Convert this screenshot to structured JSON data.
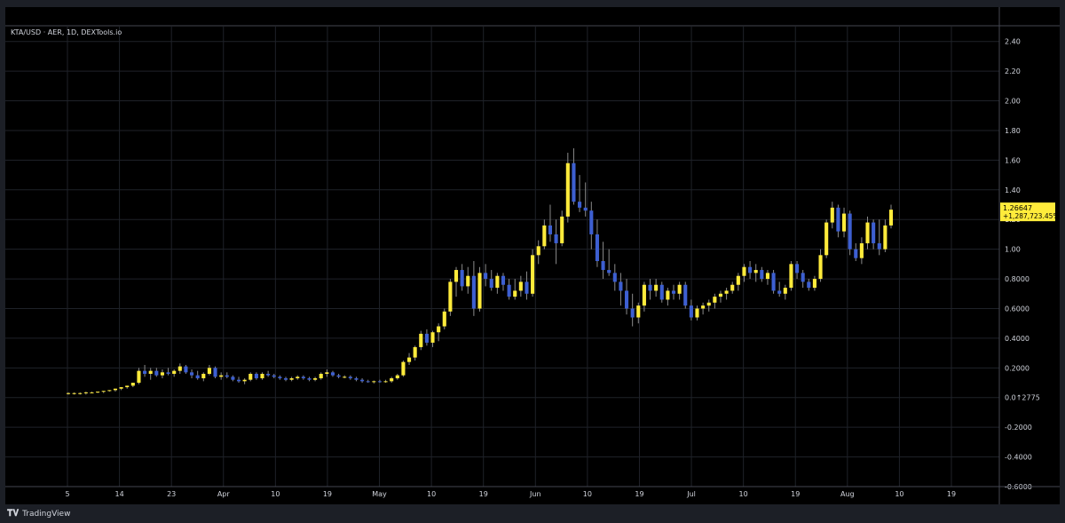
{
  "window": {
    "title": "KTA/USD · AER, 1D, DEXTools.io"
  },
  "brand": {
    "logo_icon": "tradingview-logo-icon",
    "name": "TradingView"
  },
  "colors": {
    "bg": "#000000",
    "up": "#ffeb3b",
    "down": "#3d5fd1",
    "grid": "#1f2229",
    "text": "#d1d4dc"
  },
  "chart_data": {
    "type": "candlestick",
    "title": "KTA/USD · AER, 1D, DEXTools.io",
    "y_ticks": [
      "2.40",
      "2.20",
      "2.00",
      "1.80",
      "1.60",
      "1.40",
      "1.20",
      "1.00",
      "0.8000",
      "0.6000",
      "0.4000",
      "0.2000",
      "0.0↑2775",
      "-0.2000",
      "-0.4000",
      "-0.6000"
    ],
    "x_ticks": [
      "5",
      "14",
      "23",
      "Apr",
      "10",
      "19",
      "May",
      "10",
      "19",
      "Jun",
      "10",
      "19",
      "Jul",
      "10",
      "19",
      "Aug",
      "10",
      "19"
    ],
    "ylim": [
      -0.6,
      2.5
    ],
    "last_price": "1.26647",
    "change_label": "+1,287,723.45%",
    "candles": [
      [
        0.03,
        0.035,
        0.02,
        0.03
      ],
      [
        0.03,
        0.035,
        0.02,
        0.03
      ],
      [
        0.03,
        0.035,
        0.02,
        0.03
      ],
      [
        0.03,
        0.04,
        0.02,
        0.035
      ],
      [
        0.035,
        0.04,
        0.03,
        0.035
      ],
      [
        0.035,
        0.04,
        0.03,
        0.04
      ],
      [
        0.04,
        0.045,
        0.03,
        0.045
      ],
      [
        0.045,
        0.05,
        0.04,
        0.05
      ],
      [
        0.05,
        0.06,
        0.04,
        0.06
      ],
      [
        0.06,
        0.07,
        0.05,
        0.07
      ],
      [
        0.07,
        0.08,
        0.06,
        0.08
      ],
      [
        0.08,
        0.1,
        0.07,
        0.1
      ],
      [
        0.1,
        0.2,
        0.09,
        0.18
      ],
      [
        0.18,
        0.22,
        0.14,
        0.16
      ],
      [
        0.16,
        0.2,
        0.12,
        0.18
      ],
      [
        0.18,
        0.2,
        0.14,
        0.15
      ],
      [
        0.15,
        0.19,
        0.13,
        0.17
      ],
      [
        0.17,
        0.2,
        0.15,
        0.16
      ],
      [
        0.16,
        0.19,
        0.14,
        0.18
      ],
      [
        0.18,
        0.23,
        0.16,
        0.21
      ],
      [
        0.21,
        0.22,
        0.16,
        0.17
      ],
      [
        0.17,
        0.19,
        0.13,
        0.15
      ],
      [
        0.15,
        0.18,
        0.12,
        0.13
      ],
      [
        0.13,
        0.17,
        0.11,
        0.16
      ],
      [
        0.16,
        0.22,
        0.15,
        0.2
      ],
      [
        0.2,
        0.21,
        0.13,
        0.14
      ],
      [
        0.14,
        0.17,
        0.12,
        0.15
      ],
      [
        0.15,
        0.17,
        0.13,
        0.14
      ],
      [
        0.14,
        0.15,
        0.11,
        0.12
      ],
      [
        0.12,
        0.14,
        0.1,
        0.11
      ],
      [
        0.11,
        0.13,
        0.09,
        0.12
      ],
      [
        0.12,
        0.17,
        0.11,
        0.16
      ],
      [
        0.16,
        0.17,
        0.12,
        0.13
      ],
      [
        0.13,
        0.17,
        0.12,
        0.16
      ],
      [
        0.16,
        0.18,
        0.14,
        0.15
      ],
      [
        0.15,
        0.16,
        0.13,
        0.14
      ],
      [
        0.14,
        0.15,
        0.12,
        0.13
      ],
      [
        0.13,
        0.14,
        0.11,
        0.12
      ],
      [
        0.12,
        0.14,
        0.11,
        0.13
      ],
      [
        0.13,
        0.15,
        0.12,
        0.14
      ],
      [
        0.14,
        0.15,
        0.12,
        0.13
      ],
      [
        0.13,
        0.14,
        0.11,
        0.12
      ],
      [
        0.12,
        0.14,
        0.11,
        0.13
      ],
      [
        0.13,
        0.17,
        0.12,
        0.16
      ],
      [
        0.16,
        0.19,
        0.14,
        0.17
      ],
      [
        0.17,
        0.18,
        0.14,
        0.15
      ],
      [
        0.15,
        0.16,
        0.13,
        0.14
      ],
      [
        0.14,
        0.15,
        0.13,
        0.14
      ],
      [
        0.14,
        0.15,
        0.12,
        0.13
      ],
      [
        0.13,
        0.14,
        0.11,
        0.12
      ],
      [
        0.12,
        0.13,
        0.1,
        0.11
      ],
      [
        0.11,
        0.12,
        0.1,
        0.105
      ],
      [
        0.105,
        0.115,
        0.095,
        0.11
      ],
      [
        0.11,
        0.12,
        0.1,
        0.105
      ],
      [
        0.105,
        0.12,
        0.1,
        0.11
      ],
      [
        0.11,
        0.14,
        0.1,
        0.13
      ],
      [
        0.13,
        0.16,
        0.12,
        0.15
      ],
      [
        0.15,
        0.25,
        0.14,
        0.24
      ],
      [
        0.24,
        0.3,
        0.22,
        0.27
      ],
      [
        0.27,
        0.35,
        0.25,
        0.34
      ],
      [
        0.34,
        0.45,
        0.32,
        0.43
      ],
      [
        0.43,
        0.46,
        0.35,
        0.37
      ],
      [
        0.37,
        0.45,
        0.34,
        0.44
      ],
      [
        0.44,
        0.5,
        0.38,
        0.48
      ],
      [
        0.48,
        0.6,
        0.46,
        0.58
      ],
      [
        0.58,
        0.8,
        0.55,
        0.78
      ],
      [
        0.78,
        0.88,
        0.68,
        0.86
      ],
      [
        0.86,
        0.9,
        0.72,
        0.75
      ],
      [
        0.75,
        0.88,
        0.7,
        0.82
      ],
      [
        0.82,
        0.92,
        0.55,
        0.6
      ],
      [
        0.6,
        0.88,
        0.58,
        0.84
      ],
      [
        0.84,
        0.9,
        0.75,
        0.8
      ],
      [
        0.8,
        0.86,
        0.72,
        0.74
      ],
      [
        0.74,
        0.84,
        0.7,
        0.82
      ],
      [
        0.82,
        0.84,
        0.72,
        0.76
      ],
      [
        0.76,
        0.8,
        0.66,
        0.68
      ],
      [
        0.68,
        0.8,
        0.66,
        0.72
      ],
      [
        0.72,
        0.82,
        0.68,
        0.78
      ],
      [
        0.78,
        0.85,
        0.66,
        0.7
      ],
      [
        0.7,
        1.0,
        0.68,
        0.96
      ],
      [
        0.96,
        1.06,
        0.9,
        1.02
      ],
      [
        1.02,
        1.2,
        1.0,
        1.16
      ],
      [
        1.16,
        1.3,
        1.05,
        1.1
      ],
      [
        1.1,
        1.2,
        0.9,
        1.04
      ],
      [
        1.04,
        1.26,
        1.02,
        1.22
      ],
      [
        1.22,
        1.65,
        1.18,
        1.58
      ],
      [
        1.58,
        1.68,
        1.3,
        1.32
      ],
      [
        1.32,
        1.5,
        1.25,
        1.28
      ],
      [
        1.28,
        1.45,
        1.22,
        1.26
      ],
      [
        1.26,
        1.32,
        1.0,
        1.1
      ],
      [
        1.1,
        1.2,
        0.88,
        0.92
      ],
      [
        0.92,
        1.05,
        0.8,
        0.86
      ],
      [
        0.86,
        1.0,
        0.82,
        0.84
      ],
      [
        0.84,
        0.9,
        0.72,
        0.78
      ],
      [
        0.78,
        0.84,
        0.62,
        0.72
      ],
      [
        0.72,
        0.8,
        0.56,
        0.6
      ],
      [
        0.6,
        0.7,
        0.48,
        0.54
      ],
      [
        0.54,
        0.64,
        0.5,
        0.62
      ],
      [
        0.62,
        0.78,
        0.58,
        0.76
      ],
      [
        0.76,
        0.8,
        0.66,
        0.72
      ],
      [
        0.72,
        0.8,
        0.68,
        0.76
      ],
      [
        0.76,
        0.78,
        0.64,
        0.66
      ],
      [
        0.66,
        0.74,
        0.62,
        0.72
      ],
      [
        0.72,
        0.76,
        0.66,
        0.7
      ],
      [
        0.7,
        0.78,
        0.66,
        0.76
      ],
      [
        0.76,
        0.78,
        0.6,
        0.62
      ],
      [
        0.62,
        0.66,
        0.52,
        0.54
      ],
      [
        0.54,
        0.62,
        0.52,
        0.6
      ],
      [
        0.6,
        0.64,
        0.56,
        0.62
      ],
      [
        0.62,
        0.66,
        0.58,
        0.64
      ],
      [
        0.64,
        0.7,
        0.6,
        0.68
      ],
      [
        0.68,
        0.72,
        0.64,
        0.7
      ],
      [
        0.7,
        0.74,
        0.66,
        0.72
      ],
      [
        0.72,
        0.78,
        0.7,
        0.76
      ],
      [
        0.76,
        0.84,
        0.72,
        0.82
      ],
      [
        0.82,
        0.9,
        0.78,
        0.88
      ],
      [
        0.88,
        0.92,
        0.8,
        0.84
      ],
      [
        0.84,
        0.9,
        0.78,
        0.86
      ],
      [
        0.86,
        0.88,
        0.78,
        0.8
      ],
      [
        0.8,
        0.86,
        0.76,
        0.84
      ],
      [
        0.84,
        0.86,
        0.7,
        0.72
      ],
      [
        0.72,
        0.78,
        0.68,
        0.7
      ],
      [
        0.7,
        0.76,
        0.66,
        0.74
      ],
      [
        0.74,
        0.92,
        0.72,
        0.9
      ],
      [
        0.9,
        0.92,
        0.8,
        0.84
      ],
      [
        0.84,
        0.86,
        0.74,
        0.78
      ],
      [
        0.78,
        0.8,
        0.72,
        0.74
      ],
      [
        0.74,
        0.82,
        0.72,
        0.8
      ],
      [
        0.8,
        1.0,
        0.78,
        0.96
      ],
      [
        0.96,
        1.2,
        0.94,
        1.18
      ],
      [
        1.18,
        1.32,
        1.14,
        1.28
      ],
      [
        1.28,
        1.3,
        1.08,
        1.12
      ],
      [
        1.12,
        1.28,
        1.08,
        1.24
      ],
      [
        1.24,
        1.26,
        0.96,
        1.0
      ],
      [
        1.0,
        1.04,
        0.92,
        0.94
      ],
      [
        0.94,
        1.08,
        0.9,
        1.04
      ],
      [
        1.04,
        1.22,
        1.0,
        1.18
      ],
      [
        1.18,
        1.2,
        1.0,
        1.04
      ],
      [
        1.04,
        1.2,
        0.96,
        1.0
      ],
      [
        1.0,
        1.2,
        0.98,
        1.16
      ],
      [
        1.16,
        1.3,
        1.14,
        1.26647
      ]
    ]
  }
}
